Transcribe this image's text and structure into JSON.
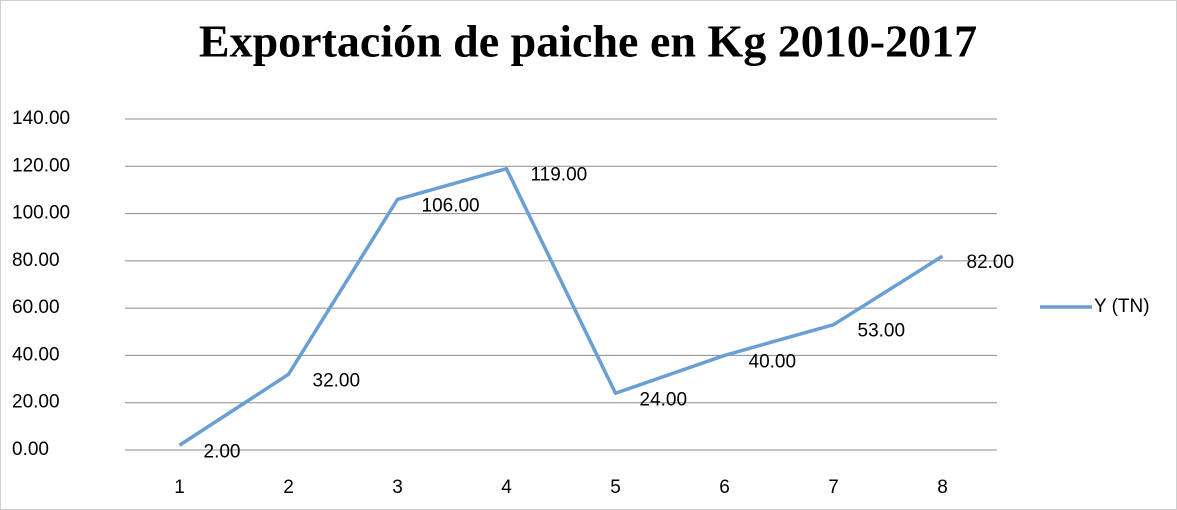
{
  "chart_data": {
    "type": "line",
    "title": "Exportación de paiche en Kg 2010-2017",
    "categories": [
      "1",
      "2",
      "3",
      "4",
      "5",
      "6",
      "7",
      "8"
    ],
    "series": [
      {
        "name": "Y (TN)",
        "color": "#6a9fd4",
        "values": [
          2,
          32,
          106,
          119,
          24,
          40,
          53,
          82
        ],
        "value_labels": [
          "2.00",
          "32.00",
          "106.00",
          "119.00",
          "24.00",
          "40.00",
          "53.00",
          "82.00"
        ]
      }
    ],
    "ylim": [
      0,
      140
    ],
    "yticks": [
      {
        "value": 0,
        "label": "0.00"
      },
      {
        "value": 20,
        "label": "20.00"
      },
      {
        "value": 40,
        "label": "40.00"
      },
      {
        "value": 60,
        "label": "60.00"
      },
      {
        "value": 80,
        "label": "80.00"
      },
      {
        "value": 100,
        "label": "100.00"
      },
      {
        "value": 120,
        "label": "120.00"
      },
      {
        "value": 140,
        "label": "140.00"
      }
    ],
    "grid": true,
    "legend": "right"
  }
}
